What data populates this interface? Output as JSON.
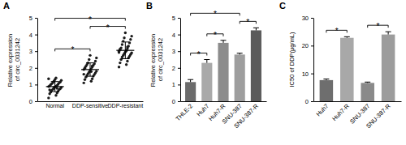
{
  "chart_data": [
    {
      "type": "scatter",
      "title": "A",
      "y_label": "Relative expression of circ_0031242",
      "categories": [
        "Normal",
        "DDP-sensitive",
        "DDP-resistant"
      ],
      "values": [
        [
          0.2,
          0.35,
          0.45,
          0.5,
          0.55,
          0.6,
          0.65,
          0.7,
          0.72,
          0.75,
          0.8,
          0.82,
          0.85,
          0.88,
          0.9,
          0.92,
          0.95,
          1.0,
          1.02,
          1.05,
          1.1,
          1.12,
          1.15,
          1.2,
          1.25,
          1.3,
          1.35,
          1.4,
          0.68,
          0.78
        ],
        [
          1.1,
          1.2,
          1.3,
          1.35,
          1.45,
          1.5,
          1.55,
          1.6,
          1.65,
          1.7,
          1.75,
          1.8,
          1.85,
          1.9,
          1.95,
          2.0,
          2.05,
          2.1,
          2.15,
          2.2,
          2.25,
          2.3,
          2.4,
          2.5,
          2.6,
          2.75,
          1.62,
          1.78,
          1.98,
          2.12
        ],
        [
          2.05,
          2.2,
          2.3,
          2.4,
          2.5,
          2.6,
          2.65,
          2.7,
          2.75,
          2.8,
          2.85,
          2.9,
          2.95,
          3.0,
          3.05,
          3.1,
          3.15,
          3.2,
          3.3,
          3.4,
          3.5,
          3.6,
          3.7,
          3.8,
          3.9,
          4.1,
          2.92,
          3.02,
          3.12,
          3.25
        ]
      ],
      "means": [
        0.88,
        1.9,
        3.05
      ],
      "errors": [
        0.3,
        0.4,
        0.5
      ],
      "color": "#1a1a1a",
      "ylim": [
        0,
        5
      ],
      "yticks": [
        0,
        1,
        2,
        3,
        4,
        5
      ],
      "annotations": [
        {
          "between": [
            "Normal",
            "DDP-sensitive"
          ],
          "label": "*"
        },
        {
          "between": [
            "DDP-sensitive",
            "DDP-resistant"
          ],
          "label": "*"
        },
        {
          "between": [
            "Normal",
            "DDP-resistant"
          ],
          "label": "*"
        }
      ]
    },
    {
      "type": "bar",
      "title": "B",
      "y_label": "Relative expression of circ_0031242",
      "categories": [
        "THLE-2",
        "Huh7",
        "Huh7-R",
        "SNU-387",
        "SNU-387-R"
      ],
      "values": [
        1.15,
        2.3,
        3.5,
        2.8,
        4.25
      ],
      "errors": [
        0.15,
        0.2,
        0.15,
        0.08,
        0.15
      ],
      "colors": [
        "#6b6b6b",
        "#a9a9a9",
        "#8c8c8c",
        "#9e9e9e",
        "#5a5a5a"
      ],
      "ylim": [
        0,
        5
      ],
      "yticks": [
        0,
        1,
        2,
        3,
        4,
        5
      ],
      "annotations": [
        {
          "between": [
            "THLE-2",
            "Huh7"
          ],
          "label": "*"
        },
        {
          "between": [
            "Huh7",
            "Huh7-R"
          ],
          "label": "*"
        },
        {
          "between": [
            "THLE-2",
            "SNU-387"
          ],
          "label": "*"
        },
        {
          "between": [
            "SNU-387",
            "SNU-387-R"
          ],
          "label": "*"
        }
      ]
    },
    {
      "type": "bar",
      "title": "C",
      "y_label": "IC50 of DDP(μg/mL)",
      "categories": [
        "Huh7",
        "Huh7-R",
        "SNU-387",
        "SNU-387-R"
      ],
      "values": [
        7.6,
        22.8,
        6.6,
        24.0
      ],
      "errors": [
        0.4,
        0.4,
        0.3,
        1.0
      ],
      "colors": [
        "#6e6e6e",
        "#a8a8a8",
        "#8a8a8a",
        "#9c9c9c"
      ],
      "ylim": [
        0,
        30
      ],
      "yticks": [
        0,
        10,
        20,
        30
      ],
      "annotations": [
        {
          "between": [
            "Huh7",
            "Huh7-R"
          ],
          "label": "*"
        },
        {
          "between": [
            "SNU-387",
            "SNU-387-R"
          ],
          "label": "*"
        }
      ]
    }
  ]
}
